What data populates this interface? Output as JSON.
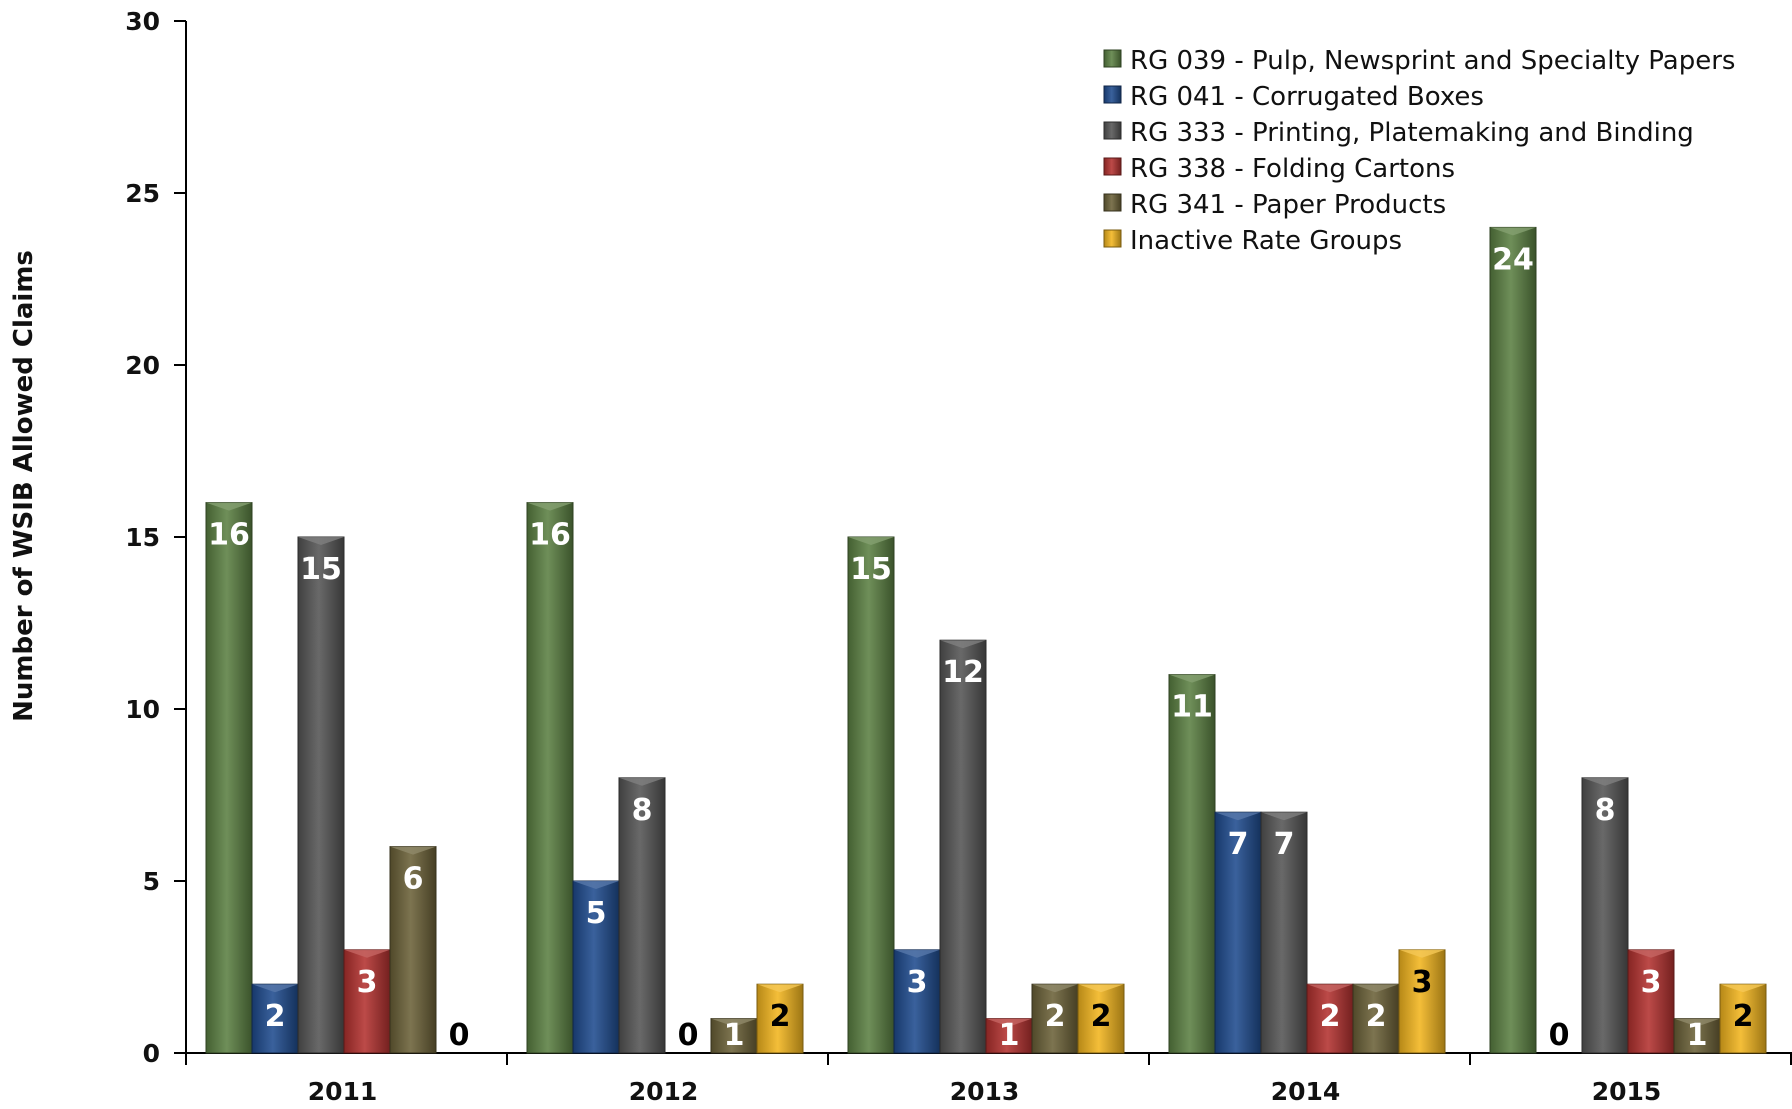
{
  "chart_data": {
    "type": "bar",
    "title": "",
    "xlabel": "",
    "ylabel": "Number of WSIB Allowed Claims",
    "ylim": [
      0,
      30
    ],
    "yticks": [
      0,
      5,
      10,
      15,
      20,
      25,
      30
    ],
    "grid": false,
    "legend_position": "top-right",
    "categories": [
      "2011",
      "2012",
      "2013",
      "2014",
      "2015"
    ],
    "series": [
      {
        "name": "RG 039 - Pulp, Newsprint and Specialty Papers",
        "color": "#5b8042",
        "values": [
          16,
          16,
          15,
          11,
          24
        ]
      },
      {
        "name": "RG 041 - Corrugated Boxes",
        "color": "#1f4b8e",
        "values": [
          2,
          5,
          3,
          7,
          0
        ]
      },
      {
        "name": "RG 333 - Printing, Platemaking and Binding",
        "color": "#555555",
        "values": [
          15,
          8,
          12,
          7,
          8
        ]
      },
      {
        "name": "RG 338 - Folding Cartons",
        "color": "#b3312f",
        "values": [
          3,
          0,
          1,
          2,
          3
        ]
      },
      {
        "name": "RG 341 - Paper Products",
        "color": "#6b6138",
        "values": [
          6,
          1,
          2,
          2,
          1
        ]
      },
      {
        "name": "Inactive Rate Groups",
        "color": "#f2b51e",
        "values": [
          0,
          2,
          2,
          3,
          2
        ]
      }
    ]
  }
}
